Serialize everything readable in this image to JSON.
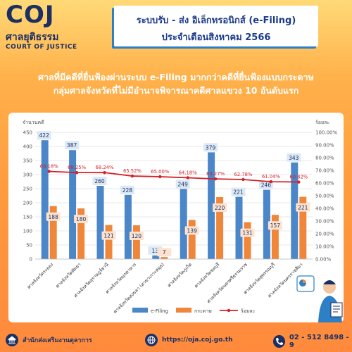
{
  "logo": {
    "abbr": "COJ",
    "thai": "ศาลยุติธรรม",
    "english": "COURT OF JUSTICE"
  },
  "header": {
    "line1": "ระบบรับ - ส่ง อิเล็กทรอนิกส์ (e-Filing)",
    "line2": "ประจำเดือนสิงหาคม 2566"
  },
  "subtitle": {
    "line1": "ศาลที่มีคดีที่ยื่นฟ้องผ่านระบบ e-Filing มากกว่าคดีที่ยื่นฟ้องแบบกระดาษ",
    "line2": "กลุ่มศาลจังหวัดที่ไม่มีอำนาจพิจารณาคดีศาลแขวง 10 อันดับแรก"
  },
  "chart_data": {
    "type": "bar",
    "ylabel": "จำนวนคดี",
    "y2label": "ร้อยละ",
    "ylim": [
      0,
      450
    ],
    "yticks": [
      0,
      50,
      100,
      150,
      200,
      250,
      300,
      350,
      400,
      450
    ],
    "y2lim": [
      0,
      100
    ],
    "y2ticks": [
      "0.00%",
      "10.00%",
      "20.00%",
      "30.00%",
      "40.00%",
      "50.00%",
      "60.00%",
      "70.00%",
      "80.00%",
      "90.00%",
      "100.00%"
    ],
    "grid": true,
    "legend_position": "bottom",
    "categories": [
      "ศาลจังหวัดระยอง",
      "ศาลจังหวัดพัทยา",
      "ศาลจังหวัดสุราษฎร์ธานี",
      "ศาลจังหวัดมุกดาหาร",
      "ศาลจังหวัดสงขลา (สาขาเกาะสมุย)",
      "ศาลจังหวัดภูเก็ต",
      "ศาลจังหวัดชลบุรี",
      "ศาลจังหวัดนครศรีธรรมราช",
      "ศาลจังหวัดสุพรรณบุรี",
      "ศาลจังหวัดนครราชสีมา"
    ],
    "series": [
      {
        "name": "e-Filing",
        "type": "bar",
        "color": "#4a86c8",
        "values": [
          422,
          387,
          260,
          228,
          13,
          249,
          379,
          221,
          246,
          343
        ]
      },
      {
        "name": "กระดาษ",
        "type": "bar",
        "color": "#f0863a",
        "values": [
          188,
          180,
          121,
          120,
          7,
          139,
          220,
          131,
          157,
          221
        ]
      },
      {
        "name": "ร้อยละ",
        "type": "line",
        "axis": "right",
        "color": "#d61f26",
        "values": [
          69.18,
          68.25,
          68.24,
          65.52,
          65.0,
          64.18,
          63.27,
          62.78,
          61.04,
          60.82
        ],
        "labels": [
          "69.18%",
          "68.25%",
          "68.24%",
          "65.52%",
          "65.00%",
          "64.18%",
          "63.27%",
          "62.78%",
          "61.04%",
          "60.82%"
        ]
      }
    ]
  },
  "footer": {
    "org": "สำนักส่งเสริมงานตุลาการ",
    "url": "https://oja.coj.go.th",
    "phone": "02 - 512 8498 - 9"
  },
  "colors": {
    "brand_navy": "#1c2f63",
    "header_text": "#1b3a8a",
    "accent_blue": "#2d7fc6"
  }
}
